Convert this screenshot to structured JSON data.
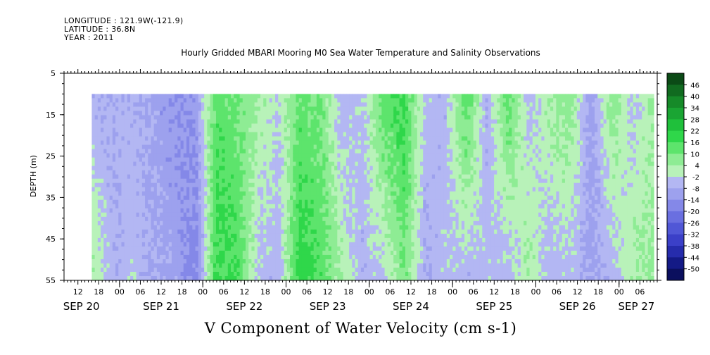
{
  "header": {
    "longitude": "LONGITUDE : 121.9W(-121.9)",
    "latitude": "LATITUDE : 36.8N",
    "year": "YEAR : 2011",
    "title": "Hourly Gridded MBARI Mooring M0 Sea Water Temperature and Salinity Observations"
  },
  "footer": {
    "variable": "V Component of Water Velocity (cm s-1)"
  },
  "chart_data": {
    "type": "heatmap",
    "title": "Hourly Gridded MBARI Mooring M0 Sea Water Temperature and Salinity Observations",
    "xlabel": "",
    "ylabel": "DEPTH (m)",
    "zlabel": "V Component of Water Velocity (cm s-1)",
    "ylim": [
      5,
      55
    ],
    "y_reversed": true,
    "y_ticks": [
      5,
      15,
      25,
      35,
      45,
      55
    ],
    "data_depth_range": [
      10,
      55
    ],
    "x_hour_ticks": [
      "12",
      "18",
      "00",
      "06",
      "12",
      "18",
      "00",
      "06",
      "12",
      "18",
      "00",
      "06",
      "12",
      "18",
      "00",
      "06",
      "12",
      "18",
      "00",
      "06",
      "12",
      "18",
      "00",
      "06",
      "12",
      "18",
      "00",
      "06"
    ],
    "x_date_labels": [
      "SEP 20",
      "SEP 21",
      "SEP 22",
      "SEP 23",
      "SEP 24",
      "SEP 25",
      "SEP 26",
      "SEP 27"
    ],
    "xlim": [
      "2011-09-20T08:00",
      "2011-09-27T11:00"
    ],
    "data_time_range": [
      "2011-09-20T16:00",
      "2011-09-27T10:00"
    ],
    "colorbar_levels": [
      "46",
      "40",
      "34",
      "28",
      "22",
      "16",
      "10",
      "4",
      "-2",
      "-8",
      "-14",
      "-20",
      "-26",
      "-32",
      "-38",
      "-44",
      "-50"
    ],
    "colorbar_colors": [
      "#0b4a16",
      "#116b20",
      "#168a29",
      "#1aa533",
      "#1fc03b",
      "#2fd74a",
      "#5de46c",
      "#8eec94",
      "#b8f2b9",
      "#b3b7f3",
      "#9da1ee",
      "#8488e8",
      "#6a6fe0",
      "#5057d6",
      "#3b40c8",
      "#262cac",
      "#141a86",
      "#0b0f5e"
    ],
    "time_column_values": [
      {
        "time": "2011-09-20T16:00",
        "surface": -6,
        "bottom": 4
      },
      {
        "time": "2011-09-20T22:00",
        "surface": -8,
        "bottom": -6
      },
      {
        "time": "2011-09-21T04:00",
        "surface": -6,
        "bottom": -4
      },
      {
        "time": "2011-09-21T10:00",
        "surface": -10,
        "bottom": -8
      },
      {
        "time": "2011-09-21T16:00",
        "surface": -14,
        "bottom": -10
      },
      {
        "time": "2011-09-21T22:00",
        "surface": -12,
        "bottom": -18
      },
      {
        "time": "2011-09-22T04:00",
        "surface": 14,
        "bottom": 18
      },
      {
        "time": "2011-09-22T10:00",
        "surface": 10,
        "bottom": 16
      },
      {
        "time": "2011-09-22T16:00",
        "surface": 4,
        "bottom": -4
      },
      {
        "time": "2011-09-22T22:00",
        "surface": -2,
        "bottom": -6
      },
      {
        "time": "2011-09-23T04:00",
        "surface": 12,
        "bottom": 20
      },
      {
        "time": "2011-09-23T10:00",
        "surface": 10,
        "bottom": 14
      },
      {
        "time": "2011-09-23T16:00",
        "surface": -6,
        "bottom": 4
      },
      {
        "time": "2011-09-23T22:00",
        "surface": -4,
        "bottom": -6
      },
      {
        "time": "2011-09-24T04:00",
        "surface": 14,
        "bottom": -4
      },
      {
        "time": "2011-09-24T10:00",
        "surface": 18,
        "bottom": 10
      },
      {
        "time": "2011-09-24T16:00",
        "surface": -4,
        "bottom": -8
      },
      {
        "time": "2011-09-24T22:00",
        "surface": -6,
        "bottom": -4
      },
      {
        "time": "2011-09-25T04:00",
        "surface": 16,
        "bottom": -6
      },
      {
        "time": "2011-09-25T10:00",
        "surface": -8,
        "bottom": -4
      },
      {
        "time": "2011-09-25T16:00",
        "surface": 14,
        "bottom": -6
      },
      {
        "time": "2011-09-25T22:00",
        "surface": -4,
        "bottom": 4
      },
      {
        "time": "2011-09-26T04:00",
        "surface": 4,
        "bottom": -6
      },
      {
        "time": "2011-09-26T10:00",
        "surface": 8,
        "bottom": -4
      },
      {
        "time": "2011-09-26T16:00",
        "surface": -12,
        "bottom": -10
      },
      {
        "time": "2011-09-26T22:00",
        "surface": 8,
        "bottom": -6
      },
      {
        "time": "2011-09-27T04:00",
        "surface": -4,
        "bottom": 4
      },
      {
        "time": "2011-09-27T10:00",
        "surface": 4,
        "bottom": 6
      }
    ]
  }
}
